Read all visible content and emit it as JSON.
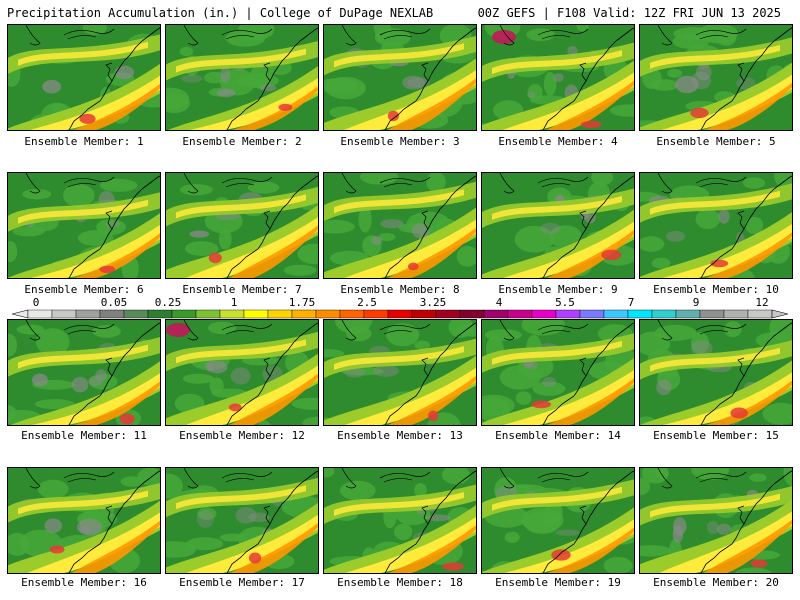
{
  "header": {
    "left": "Precipitation Accumulation (in.) | College of DuPage NEXLAB",
    "right": "00Z GEFS | F108 Valid: 12Z FRI JUN 13 2025"
  },
  "panels": [
    {
      "label": "Ensemble Member: 1"
    },
    {
      "label": "Ensemble Member: 2"
    },
    {
      "label": "Ensemble Member: 3"
    },
    {
      "label": "Ensemble Member: 4"
    },
    {
      "label": "Ensemble Member: 5"
    },
    {
      "label": "Ensemble Member: 6"
    },
    {
      "label": "Ensemble Member: 7"
    },
    {
      "label": "Ensemble Member: 8"
    },
    {
      "label": "Ensemble Member: 9"
    },
    {
      "label": "Ensemble Member: 10"
    },
    {
      "label": "Ensemble Member: 11"
    },
    {
      "label": "Ensemble Member: 12"
    },
    {
      "label": "Ensemble Member: 13"
    },
    {
      "label": "Ensemble Member: 14"
    },
    {
      "label": "Ensemble Member: 15"
    },
    {
      "label": "Ensemble Member: 16"
    },
    {
      "label": "Ensemble Member: 17"
    },
    {
      "label": "Ensemble Member: 18"
    },
    {
      "label": "Ensemble Member: 19"
    },
    {
      "label": "Ensemble Member: 20"
    }
  ],
  "colorbar": {
    "labels": [
      "0",
      "0.05",
      "0.25",
      "1",
      "1.75",
      "2.5",
      "3.25",
      "4",
      "5.5",
      "7",
      "9",
      "12"
    ],
    "colors": [
      "#e8e8e8",
      "#c8c8c8",
      "#a0a0a0",
      "#808080",
      "#5a8a5a",
      "#2e7d32",
      "#3a9a2a",
      "#7dc234",
      "#c8e030",
      "#ffff00",
      "#ffd400",
      "#ffb000",
      "#ff8c00",
      "#ff6400",
      "#ff3c00",
      "#e60000",
      "#c00000",
      "#a00020",
      "#800030",
      "#a0006a",
      "#c8008c",
      "#e600c8",
      "#b040ff",
      "#7a7aff",
      "#3cc8ff",
      "#00e6ff",
      "#30d0d0",
      "#60b0b0",
      "#909090",
      "#b0b0b0",
      "#c8c8c8"
    ]
  },
  "colors": {
    "base_green": "#2e8b2e",
    "light_green": "#45a838",
    "yellow_green": "#9ccc2c",
    "yellow": "#ffeb3b",
    "orange": "#ff9800",
    "red": "#e53935",
    "gray": "#8a8a8a",
    "magenta": "#c2185b"
  }
}
